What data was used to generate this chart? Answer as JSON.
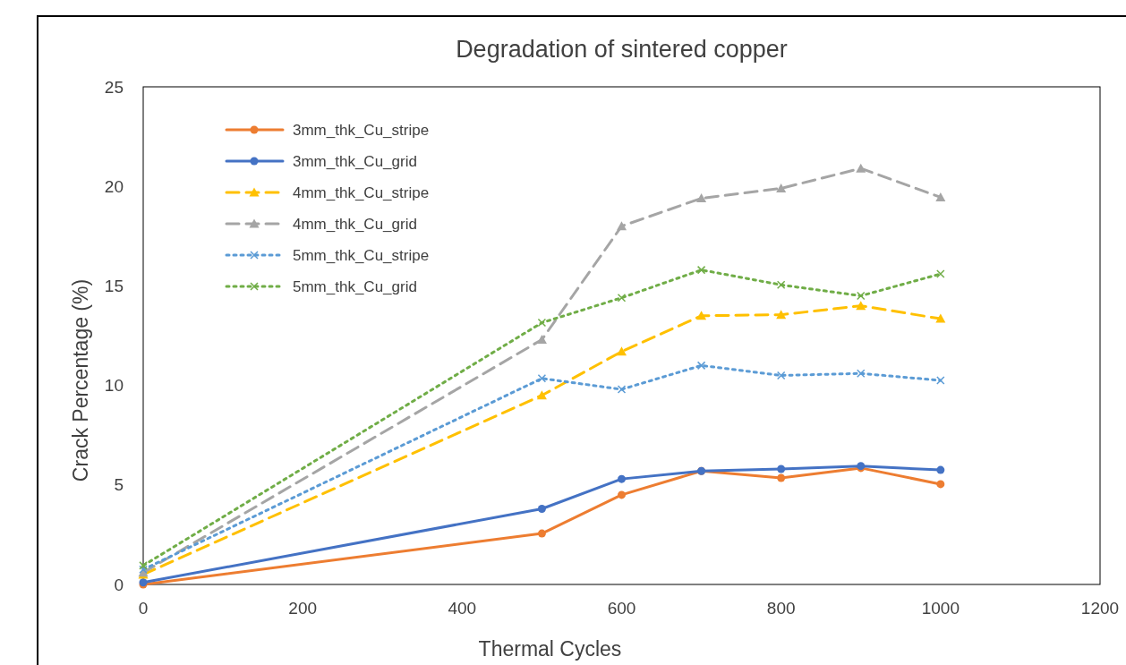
{
  "chart_data": {
    "type": "line",
    "title": "Degradation of sintered copper",
    "xlabel": "Thermal Cycles",
    "ylabel": "Crack Percentage (%)",
    "x": [
      0,
      500,
      600,
      700,
      800,
      900,
      1000
    ],
    "xlim": [
      0,
      1200
    ],
    "xticks": [
      0,
      200,
      400,
      600,
      800,
      1000,
      1200
    ],
    "ylim": [
      0,
      25
    ],
    "yticks": [
      0,
      5,
      10,
      15,
      20,
      25
    ],
    "grid": false,
    "legend": "top left",
    "series": [
      {
        "name": "3mm_thk_Cu_stripe",
        "color": "#ed7d31",
        "marker": "circle",
        "line_style": "solid",
        "values": [
          0,
          2.56,
          4.5,
          5.7,
          5.35,
          5.85,
          5.04
        ]
      },
      {
        "name": "3mm_thk_Cu_grid",
        "color": "#4472c4",
        "marker": "circle",
        "line_style": "solid",
        "values": [
          0.1,
          3.8,
          5.3,
          5.7,
          5.8,
          5.95,
          5.75
        ]
      },
      {
        "name": "4mm_thk_Cu_stripe",
        "color": "#ffc000",
        "marker": "triangle",
        "line_style": "dashed",
        "values": [
          0.5,
          9.5,
          11.7,
          13.5,
          13.55,
          14.0,
          13.35
        ]
      },
      {
        "name": "4mm_thk_Cu_grid",
        "color": "#a5a5a5",
        "marker": "triangle",
        "line_style": "dashed",
        "values": [
          0.6,
          12.3,
          18.0,
          19.4,
          19.9,
          20.9,
          19.45
        ]
      },
      {
        "name": "5mm_thk_Cu_stripe",
        "color": "#5b9bd5",
        "marker": "cross",
        "line_style": "dotted",
        "values": [
          0.75,
          10.35,
          9.8,
          11.0,
          10.5,
          10.6,
          10.25
        ]
      },
      {
        "name": "5mm_thk_Cu_grid",
        "color": "#70ad47",
        "marker": "cross",
        "line_style": "dotted",
        "values": [
          0.95,
          13.15,
          14.4,
          15.8,
          15.05,
          14.5,
          15.6
        ]
      }
    ]
  }
}
